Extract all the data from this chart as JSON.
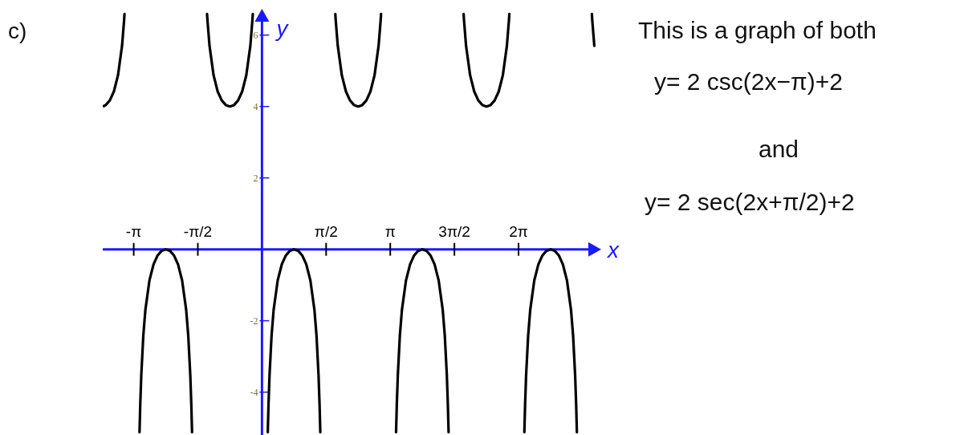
{
  "chart_data": {
    "type": "line",
    "title": "c)",
    "xlabel": "x",
    "ylabel": "y",
    "xlim": [
      -3.9,
      8.15
    ],
    "ylim": [
      -5.2,
      6.6
    ],
    "xticks": [
      {
        "value": -3.1416,
        "label": "-π"
      },
      {
        "value": -1.5708,
        "label": "-π/2"
      },
      {
        "value": 1.5708,
        "label": "π/2"
      },
      {
        "value": 3.1416,
        "label": "π"
      },
      {
        "value": 4.7124,
        "label": "3π/2"
      },
      {
        "value": 6.2832,
        "label": "2π"
      }
    ],
    "yticks": [
      -4,
      -2,
      2,
      4,
      6
    ],
    "grid": false,
    "marker": "none",
    "line_style": "solid",
    "annotations": [
      "This is a graph of both",
      "y= 2 csc(2x−π)+2",
      "and",
      "y= 2 sec(2x+π/2)+2"
    ],
    "series": [
      {
        "color": "#000000",
        "x": [
          -3.877,
          -3.827,
          -3.727,
          -3.627,
          -3.527,
          -3.427,
          -3.377,
          -3.367,
          -3.142,
          -2.999,
          -2.996,
          -2.981,
          -2.956,
          -2.906,
          -2.856,
          -2.756,
          -2.656,
          -2.556,
          -2.456,
          -2.356,
          -2.256,
          -2.156,
          -2.056,
          -1.956,
          -1.856,
          -1.806,
          -1.756,
          -1.731,
          -1.716,
          -1.713,
          -1.571,
          -1.345,
          -1.335,
          -1.285,
          -1.185,
          -1.085,
          -0.985,
          -0.885,
          -0.785,
          -0.685,
          -0.585,
          -0.485,
          -0.385,
          -0.285,
          -0.235,
          -0.225,
          0,
          0.142,
          0.145,
          0.16,
          0.185,
          0.235,
          0.285,
          0.385,
          0.485,
          0.585,
          0.685,
          0.785,
          0.885,
          0.985,
          1.085,
          1.185,
          1.285,
          1.335,
          1.385,
          1.41,
          1.425,
          1.428,
          1.571,
          1.796,
          1.806,
          1.856,
          1.956,
          2.056,
          2.156,
          2.256,
          2.356,
          2.456,
          2.556,
          2.656,
          2.756,
          2.856,
          2.906,
          2.916,
          3.142,
          3.284,
          3.287,
          3.302,
          3.327,
          3.377,
          3.427,
          3.527,
          3.627,
          3.727,
          3.827,
          3.927,
          4.027,
          4.127,
          4.227,
          4.327,
          4.427,
          4.477,
          4.527,
          4.552,
          4.567,
          4.57,
          4.712,
          4.938,
          4.948,
          4.998,
          5.098,
          5.198,
          5.298,
          5.398,
          5.498,
          5.598,
          5.698,
          5.798,
          5.898,
          5.998,
          6.048,
          6.058,
          6.283,
          6.426,
          6.429,
          6.444,
          6.469,
          6.519,
          6.569,
          6.669,
          6.769,
          6.869,
          6.969,
          7.069,
          7.169,
          7.269,
          7.369,
          7.469,
          7.569,
          7.619,
          7.669,
          7.694,
          7.709,
          7.712,
          7.854,
          8.079,
          8.089,
          8.139
        ],
        "values": [
          4.01,
          4.04,
          4.17,
          4.42,
          4.87,
          5.7,
          6.41,
          6.59,
          null,
          -5.12,
          -4.98,
          -4.34,
          -3.52,
          -2.41,
          -1.7,
          -0.87,
          -0.42,
          -0.17,
          -0.04,
          0,
          -0.04,
          -0.17,
          -0.42,
          -0.87,
          -1.7,
          -2.41,
          -3.52,
          -4.34,
          -4.98,
          -5.12,
          null,
          6.59,
          6.41,
          5.7,
          4.87,
          4.42,
          4.17,
          4.04,
          4,
          4.04,
          4.17,
          4.42,
          4.87,
          5.7,
          6.41,
          6.59,
          null,
          -5.12,
          -4.98,
          -4.34,
          -3.52,
          -2.41,
          -1.7,
          -0.87,
          -0.42,
          -0.17,
          -0.04,
          0,
          -0.04,
          -0.17,
          -0.42,
          -0.87,
          -1.7,
          -2.41,
          -3.52,
          -4.34,
          -4.98,
          -5.12,
          null,
          6.59,
          6.41,
          5.7,
          4.87,
          4.42,
          4.17,
          4.04,
          4,
          4.04,
          4.17,
          4.42,
          4.87,
          5.7,
          6.41,
          6.59,
          null,
          -5.12,
          -4.98,
          -4.34,
          -3.52,
          -2.41,
          -1.7,
          -0.87,
          -0.42,
          -0.17,
          -0.04,
          0,
          -0.04,
          -0.17,
          -0.42,
          -0.87,
          -1.7,
          -2.41,
          -3.52,
          -4.34,
          -4.98,
          -5.12,
          null,
          6.59,
          6.41,
          5.7,
          4.87,
          4.42,
          4.17,
          4.04,
          4,
          4.04,
          4.17,
          4.42,
          4.87,
          5.7,
          6.41,
          6.59,
          null,
          -5.12,
          -4.98,
          -4.34,
          -3.52,
          -2.41,
          -1.7,
          -0.87,
          -0.42,
          -0.17,
          -0.04,
          0,
          -0.04,
          -0.17,
          -0.42,
          -0.87,
          -1.7,
          -2.41,
          -3.52,
          -4.34,
          -4.98,
          -5.12,
          null,
          6.59,
          6.41,
          5.7
        ]
      }
    ]
  }
}
